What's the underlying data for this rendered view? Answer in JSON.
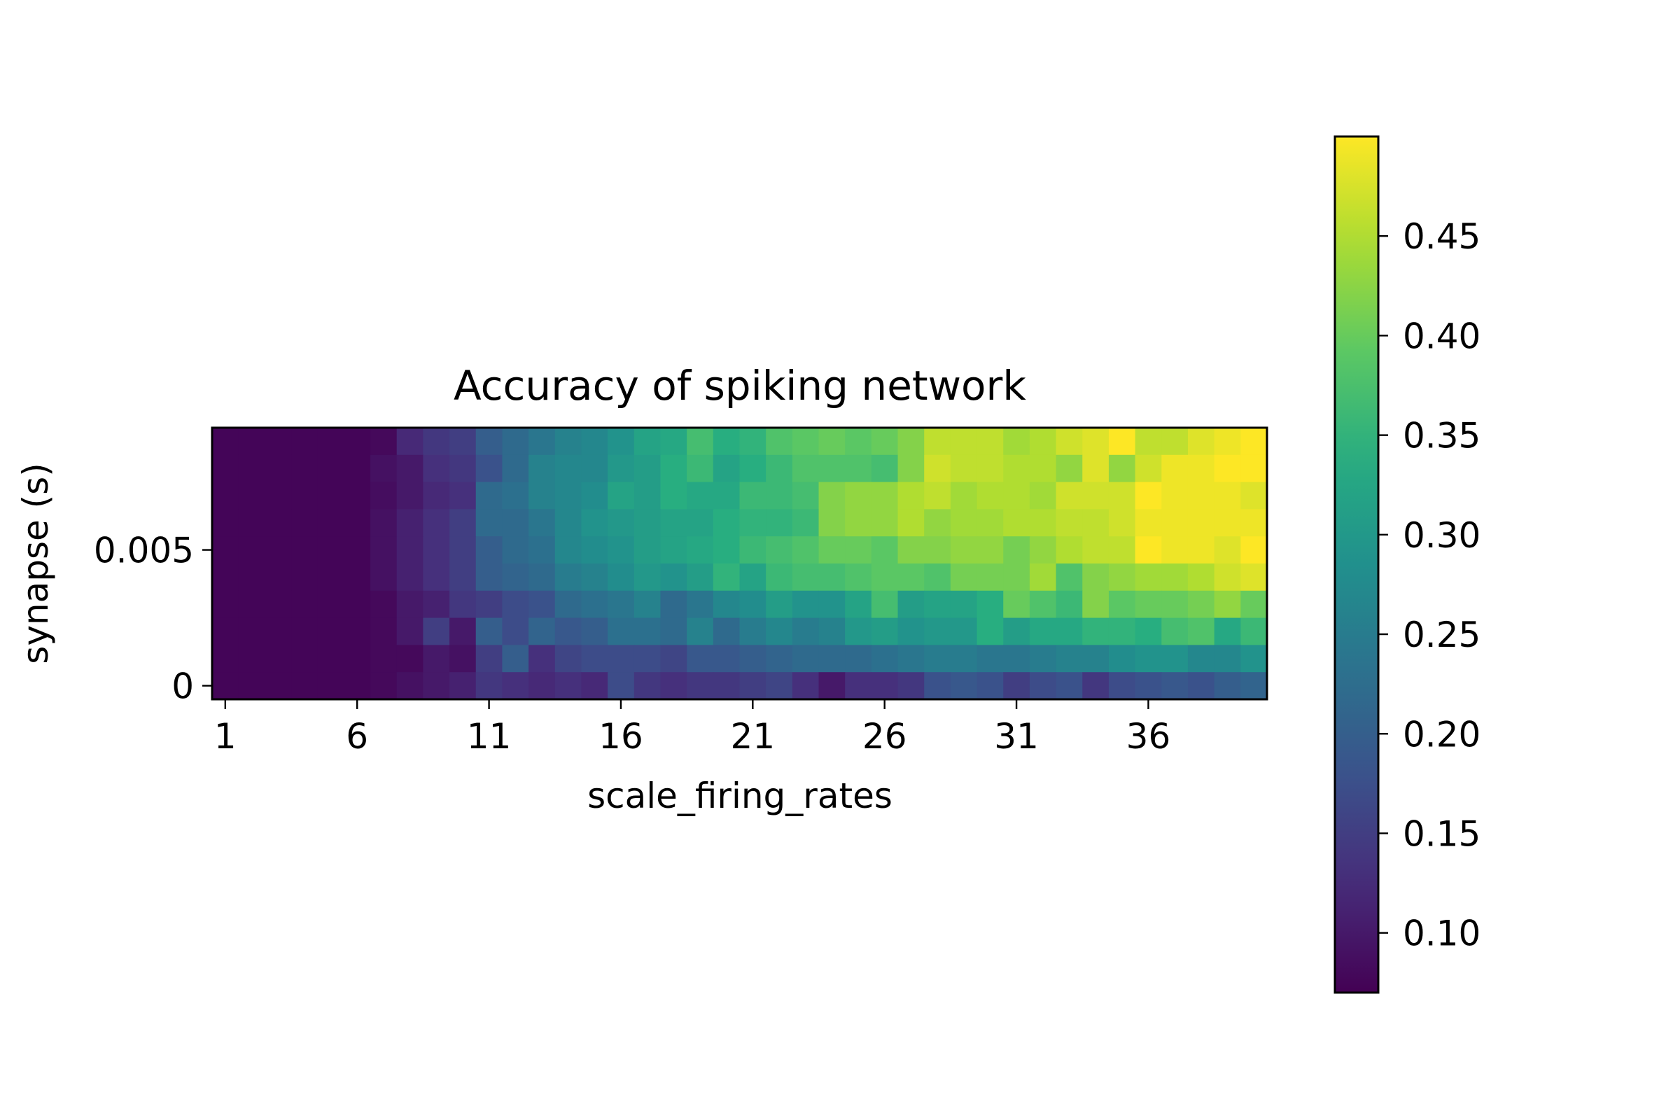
{
  "chart_data": {
    "type": "heatmap",
    "title": "Accuracy of spiking network",
    "xlabel": "scale_firing_rates",
    "ylabel": "synapse (s)",
    "x_tick_labels": [
      "1",
      "6",
      "11",
      "16",
      "21",
      "26",
      "31",
      "36"
    ],
    "x_tick_values": [
      1,
      6,
      11,
      16,
      21,
      26,
      31,
      36
    ],
    "y_tick_labels": [
      "0.005",
      "0"
    ],
    "y_tick_values": [
      0.005,
      0
    ],
    "x_values": [
      1,
      2,
      3,
      4,
      5,
      6,
      7,
      8,
      9,
      10,
      11,
      12,
      13,
      14,
      15,
      16,
      17,
      18,
      19,
      20,
      21,
      22,
      23,
      24,
      25,
      26,
      27,
      28,
      29,
      30,
      31,
      32,
      33,
      34,
      35,
      36,
      37,
      38,
      39,
      40
    ],
    "y_values": [
      0,
      0.001,
      0.002,
      0.003,
      0.004,
      0.005,
      0.006,
      0.007,
      0.008,
      0.009
    ],
    "colormap": "viridis",
    "vmin": 0.07,
    "vmax": 0.5,
    "colorbar_ticks": [
      "0.10",
      "0.15",
      "0.20",
      "0.25",
      "0.30",
      "0.35",
      "0.40",
      "0.45"
    ],
    "colorbar_tick_values": [
      0.1,
      0.15,
      0.2,
      0.25,
      0.3,
      0.35,
      0.4,
      0.45
    ],
    "rows_top_to_bottom": [
      [
        0.075,
        0.075,
        0.075,
        0.075,
        0.075,
        0.075,
        0.08,
        0.12,
        0.14,
        0.15,
        0.2,
        0.22,
        0.24,
        0.26,
        0.27,
        0.29,
        0.32,
        0.33,
        0.37,
        0.34,
        0.35,
        0.38,
        0.39,
        0.4,
        0.39,
        0.4,
        0.42,
        0.46,
        0.46,
        0.46,
        0.44,
        0.45,
        0.47,
        0.48,
        0.5,
        0.46,
        0.46,
        0.48,
        0.49,
        0.5
      ],
      [
        0.075,
        0.075,
        0.075,
        0.075,
        0.075,
        0.075,
        0.09,
        0.1,
        0.13,
        0.14,
        0.18,
        0.22,
        0.26,
        0.27,
        0.27,
        0.3,
        0.31,
        0.34,
        0.36,
        0.32,
        0.34,
        0.36,
        0.38,
        0.38,
        0.38,
        0.37,
        0.42,
        0.47,
        0.46,
        0.46,
        0.45,
        0.45,
        0.43,
        0.48,
        0.43,
        0.47,
        0.49,
        0.49,
        0.5,
        0.5
      ],
      [
        0.075,
        0.075,
        0.075,
        0.075,
        0.075,
        0.075,
        0.085,
        0.1,
        0.12,
        0.13,
        0.22,
        0.23,
        0.26,
        0.27,
        0.28,
        0.32,
        0.31,
        0.34,
        0.33,
        0.33,
        0.36,
        0.36,
        0.37,
        0.42,
        0.43,
        0.43,
        0.45,
        0.46,
        0.44,
        0.45,
        0.45,
        0.44,
        0.47,
        0.47,
        0.47,
        0.5,
        0.49,
        0.49,
        0.49,
        0.48
      ],
      [
        0.075,
        0.075,
        0.075,
        0.075,
        0.075,
        0.075,
        0.09,
        0.11,
        0.13,
        0.15,
        0.22,
        0.22,
        0.24,
        0.27,
        0.29,
        0.3,
        0.31,
        0.32,
        0.32,
        0.34,
        0.35,
        0.35,
        0.36,
        0.42,
        0.43,
        0.43,
        0.45,
        0.43,
        0.44,
        0.44,
        0.45,
        0.45,
        0.46,
        0.46,
        0.47,
        0.49,
        0.49,
        0.49,
        0.49,
        0.49
      ],
      [
        0.075,
        0.075,
        0.075,
        0.075,
        0.075,
        0.075,
        0.09,
        0.11,
        0.13,
        0.15,
        0.2,
        0.22,
        0.23,
        0.27,
        0.28,
        0.29,
        0.31,
        0.32,
        0.33,
        0.34,
        0.36,
        0.37,
        0.38,
        0.4,
        0.4,
        0.39,
        0.42,
        0.42,
        0.43,
        0.43,
        0.41,
        0.43,
        0.45,
        0.46,
        0.46,
        0.5,
        0.49,
        0.49,
        0.48,
        0.5
      ],
      [
        0.075,
        0.075,
        0.075,
        0.075,
        0.075,
        0.075,
        0.09,
        0.11,
        0.13,
        0.15,
        0.2,
        0.21,
        0.22,
        0.25,
        0.26,
        0.28,
        0.3,
        0.29,
        0.31,
        0.35,
        0.32,
        0.36,
        0.37,
        0.37,
        0.38,
        0.39,
        0.39,
        0.38,
        0.41,
        0.41,
        0.41,
        0.44,
        0.38,
        0.42,
        0.43,
        0.44,
        0.44,
        0.45,
        0.47,
        0.48
      ],
      [
        0.075,
        0.075,
        0.075,
        0.075,
        0.075,
        0.075,
        0.08,
        0.1,
        0.11,
        0.14,
        0.15,
        0.17,
        0.18,
        0.22,
        0.23,
        0.24,
        0.26,
        0.22,
        0.24,
        0.27,
        0.28,
        0.31,
        0.29,
        0.29,
        0.32,
        0.37,
        0.31,
        0.32,
        0.32,
        0.34,
        0.4,
        0.38,
        0.36,
        0.42,
        0.39,
        0.4,
        0.4,
        0.41,
        0.43,
        0.4
      ],
      [
        0.075,
        0.075,
        0.075,
        0.075,
        0.075,
        0.075,
        0.08,
        0.1,
        0.15,
        0.1,
        0.2,
        0.17,
        0.21,
        0.19,
        0.2,
        0.23,
        0.23,
        0.22,
        0.26,
        0.22,
        0.25,
        0.27,
        0.25,
        0.26,
        0.3,
        0.31,
        0.29,
        0.3,
        0.3,
        0.34,
        0.31,
        0.33,
        0.33,
        0.35,
        0.35,
        0.34,
        0.37,
        0.38,
        0.33,
        0.36
      ],
      [
        0.075,
        0.075,
        0.075,
        0.075,
        0.075,
        0.075,
        0.08,
        0.08,
        0.1,
        0.09,
        0.15,
        0.2,
        0.13,
        0.16,
        0.17,
        0.17,
        0.17,
        0.16,
        0.19,
        0.19,
        0.2,
        0.21,
        0.22,
        0.22,
        0.22,
        0.23,
        0.24,
        0.25,
        0.25,
        0.24,
        0.24,
        0.25,
        0.26,
        0.26,
        0.28,
        0.29,
        0.29,
        0.27,
        0.27,
        0.29
      ],
      [
        0.075,
        0.075,
        0.075,
        0.075,
        0.075,
        0.075,
        0.08,
        0.09,
        0.1,
        0.11,
        0.14,
        0.13,
        0.12,
        0.13,
        0.12,
        0.17,
        0.14,
        0.13,
        0.14,
        0.14,
        0.15,
        0.16,
        0.13,
        0.1,
        0.13,
        0.13,
        0.14,
        0.18,
        0.19,
        0.18,
        0.15,
        0.17,
        0.18,
        0.14,
        0.17,
        0.18,
        0.19,
        0.18,
        0.2,
        0.21
      ]
    ]
  }
}
